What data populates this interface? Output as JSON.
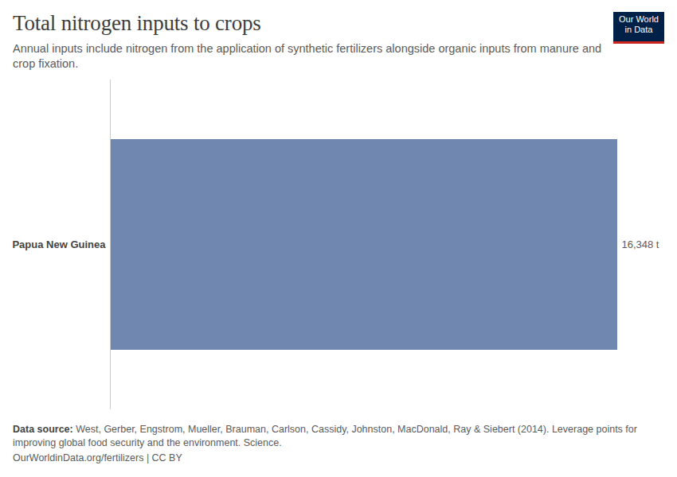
{
  "chart_data": {
    "type": "bar",
    "title": "Total nitrogen inputs to crops",
    "subtitle": "Annual inputs include nitrogen from the application of synthetic fertilizers alongside organic inputs from manure and crop fixation.",
    "categories": [
      "Papua New Guinea"
    ],
    "values": [
      16348
    ],
    "value_labels": [
      "16,348 t"
    ],
    "color": "#7088b0",
    "orientation": "horizontal",
    "data_labels": true,
    "tick_labels": "y",
    "xlim": [
      0,
      16348
    ],
    "source_label": "Data source:",
    "source": "West, Gerber, Engstrom, Mueller, Brauman, Carlson, Cassidy, Johnston, MacDonald, Ray & Siebert (2014). Leverage points for improving global food security and the environment. Science.",
    "footer": "OurWorldinData.org/fertilizers | CC BY",
    "logo": [
      "Our World",
      "in Data"
    ]
  }
}
